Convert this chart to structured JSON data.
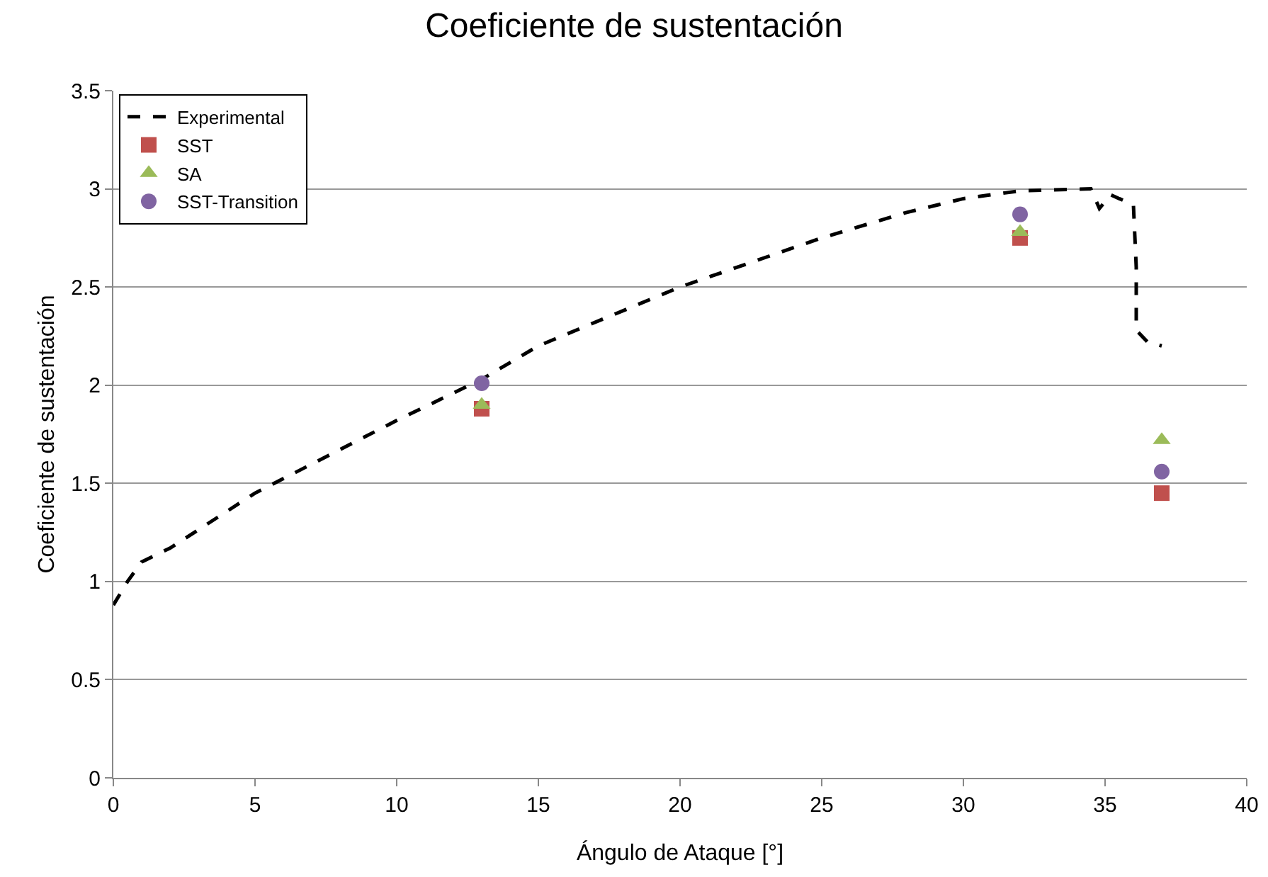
{
  "chart_data": {
    "type": "scatter",
    "title": "Coeficiente de sustentación",
    "xlabel": "Ángulo de Ataque [°]",
    "ylabel": "Coeficiente de sustentación",
    "xlim": [
      0,
      40
    ],
    "xticks": [
      0,
      5,
      10,
      15,
      20,
      25,
      30,
      35,
      40
    ],
    "ylim": [
      0,
      3.5
    ],
    "yticks": [
      0,
      0.5,
      1,
      1.5,
      2,
      2.5,
      3,
      3.5
    ],
    "grid": "y",
    "legend": "top left",
    "series": [
      {
        "name": "Experimental",
        "type": "line",
        "line_style": "dashed",
        "marker": "none",
        "color": "#000000",
        "x": [
          0,
          0.5,
          1,
          2,
          5,
          10,
          13,
          15,
          20,
          25,
          28,
          30,
          32,
          34.5,
          34.8,
          35.2,
          35.5,
          36,
          36.1,
          36.1,
          36.5,
          37
        ],
        "values": [
          0.88,
          1.0,
          1.1,
          1.17,
          1.45,
          1.82,
          2.03,
          2.2,
          2.5,
          2.75,
          2.88,
          2.95,
          2.99,
          3.0,
          2.9,
          2.97,
          2.95,
          2.92,
          2.6,
          2.28,
          2.22,
          2.2
        ]
      },
      {
        "name": "SST",
        "marker": "square",
        "color": "#c0504d",
        "x": [
          13,
          32,
          37
        ],
        "values": [
          1.88,
          2.75,
          1.45
        ]
      },
      {
        "name": "SA",
        "marker": "triangle",
        "color": "#9bbb59",
        "x": [
          13,
          32,
          37
        ],
        "values": [
          1.9,
          2.78,
          1.72
        ]
      },
      {
        "name": "SST-Transition",
        "marker": "circle",
        "color": "#8064a2",
        "x": [
          13,
          32,
          37
        ],
        "values": [
          2.01,
          2.87,
          1.56
        ]
      }
    ]
  }
}
